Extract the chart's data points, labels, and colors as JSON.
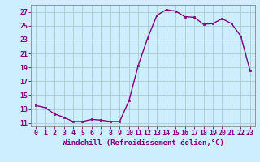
{
  "x": [
    0,
    1,
    2,
    3,
    4,
    5,
    6,
    7,
    8,
    9,
    10,
    11,
    12,
    13,
    14,
    15,
    16,
    17,
    18,
    19,
    20,
    21,
    22,
    23
  ],
  "y": [
    13.5,
    13.2,
    12.3,
    11.8,
    11.2,
    11.2,
    11.5,
    11.4,
    11.2,
    11.2,
    14.2,
    19.3,
    23.2,
    26.5,
    27.3,
    27.1,
    26.3,
    26.2,
    25.2,
    25.3,
    26.0,
    25.3,
    23.5,
    18.5
  ],
  "line_color": "#800080",
  "marker_color": "#800080",
  "bg_color": "#cceeff",
  "grid_color": "#aacccc",
  "xlabel": "Windchill (Refroidissement éolien,°C)",
  "xlim": [
    -0.5,
    23.5
  ],
  "ylim": [
    10.5,
    28
  ],
  "yticks": [
    11,
    13,
    15,
    17,
    19,
    21,
    23,
    25,
    27
  ],
  "xticks": [
    0,
    1,
    2,
    3,
    4,
    5,
    6,
    7,
    8,
    9,
    10,
    11,
    12,
    13,
    14,
    15,
    16,
    17,
    18,
    19,
    20,
    21,
    22,
    23
  ],
  "xlabel_fontsize": 6.5,
  "tick_fontsize": 6,
  "label_color": "#800080",
  "spine_color": "#888888",
  "linewidth": 1.0,
  "markersize": 2.0
}
